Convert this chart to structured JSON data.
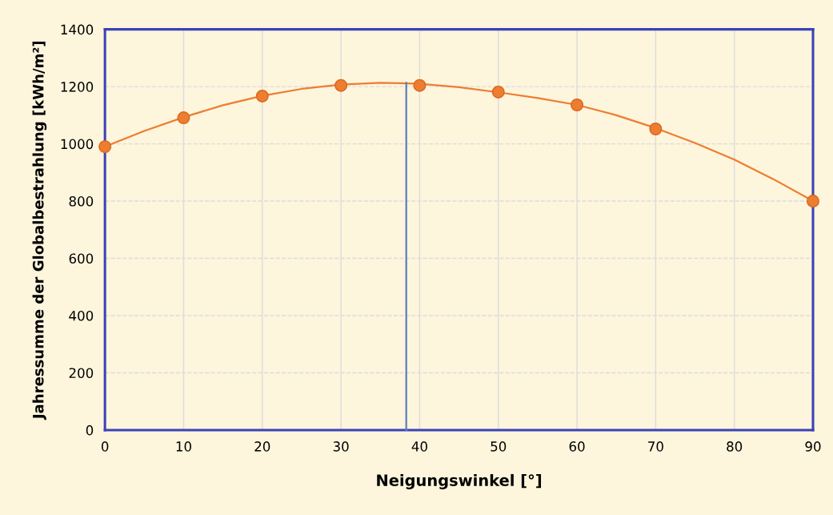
{
  "chart_data": {
    "type": "scatter",
    "xlabel": "Neigungswinkel [°]",
    "ylabel": "Jahressumme der Globalbestrahlung [kWh/m²]",
    "x": [
      0,
      10,
      20,
      30,
      40,
      50,
      60,
      70,
      90
    ],
    "series": [
      {
        "type": "line",
        "color": "#ed7d31",
        "marker": "none",
        "x": [
          0,
          5,
          10,
          15,
          20,
          25,
          30,
          35,
          40,
          45,
          50,
          55,
          60,
          65,
          70,
          75,
          80,
          85,
          90
        ],
        "values": [
          990,
          1045,
          1093,
          1135,
          1168,
          1192,
          1207,
          1213,
          1210,
          1198,
          1180,
          1160,
          1136,
          1100,
          1055,
          1003,
          945,
          876,
          800
        ]
      },
      {
        "color": "#ed7d31",
        "marker": "circle",
        "values": [
          990,
          1091,
          1167,
          1204,
          1204,
          1181,
          1136,
          1052,
          800
        ]
      },
      {
        "type": "line",
        "color": "#5b7fbf",
        "marker": "none",
        "x": [
          38.3,
          38.3
        ],
        "values": [
          0,
          1213
        ]
      }
    ],
    "xlim": [
      0,
      90
    ],
    "xticks": [
      0,
      10,
      20,
      30,
      40,
      50,
      60,
      70,
      80,
      90
    ],
    "ylim": [
      0,
      1400
    ],
    "yticks": [
      0,
      200,
      400,
      600,
      800,
      1000,
      1200,
      1400
    ],
    "grid": true
  }
}
